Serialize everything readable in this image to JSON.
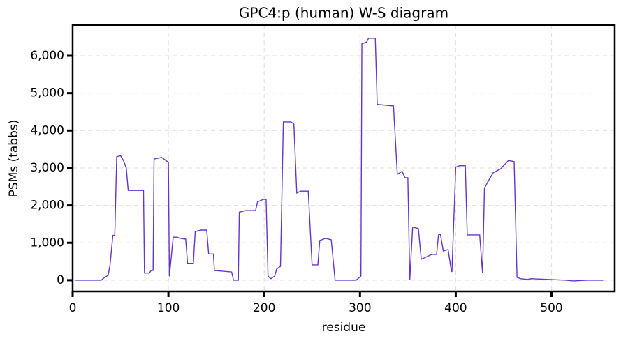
{
  "chart_data": {
    "type": "line",
    "title": "GPC4:p (human) W-S diagram",
    "x_label": "residue",
    "y_label": "PSMs (tabbs)",
    "x": [
      3,
      30,
      32,
      37,
      39,
      42,
      44,
      46,
      50,
      53,
      56,
      58,
      74,
      75,
      80,
      82,
      84,
      85,
      93,
      100,
      101,
      105,
      109,
      112,
      118,
      120,
      126,
      128,
      134,
      140,
      142,
      147,
      148,
      166,
      168,
      173,
      174,
      181,
      191,
      193,
      199,
      202,
      204,
      207,
      211,
      213,
      217,
      220,
      228,
      231,
      234,
      238,
      246,
      250,
      256,
      258,
      264,
      270,
      274,
      296,
      301,
      302,
      307,
      309,
      316,
      318,
      335,
      339,
      344,
      347,
      350,
      352,
      355,
      361,
      364,
      370,
      375,
      380,
      382,
      384,
      387,
      392,
      395,
      396,
      400,
      404,
      410,
      412,
      425,
      428,
      430,
      434,
      439,
      447,
      455,
      461,
      464,
      468,
      475,
      479,
      515,
      523,
      537,
      554
    ],
    "series": [
      {
        "name": "GPC4:p",
        "color": "#6633cc",
        "values": [
          0,
          0,
          50,
          130,
          400,
          1200,
          1200,
          3300,
          3330,
          3200,
          3000,
          2400,
          2400,
          190,
          190,
          260,
          260,
          3240,
          3280,
          3150,
          100,
          1150,
          1150,
          1120,
          1100,
          450,
          450,
          1300,
          1340,
          1340,
          700,
          700,
          260,
          220,
          0,
          0,
          1820,
          1860,
          1860,
          2090,
          2160,
          2160,
          110,
          40,
          110,
          300,
          370,
          4230,
          4230,
          4170,
          2330,
          2380,
          2380,
          410,
          410,
          1060,
          1120,
          1080,
          0,
          0,
          110,
          6320,
          6370,
          6470,
          6470,
          4700,
          4660,
          2830,
          2910,
          2740,
          2740,
          0,
          1420,
          1380,
          560,
          630,
          690,
          690,
          1210,
          1230,
          780,
          820,
          320,
          220,
          3020,
          3060,
          3060,
          1210,
          1210,
          190,
          2460,
          2650,
          2870,
          2980,
          3200,
          3170,
          75,
          40,
          20,
          40,
          0,
          -20,
          0,
          0
        ]
      }
    ],
    "xlim": [
      0,
      566
    ],
    "ylim": [
      -300,
      6820
    ],
    "xticks": [
      0,
      100,
      200,
      300,
      400,
      500
    ],
    "yticks": [
      0,
      {
        "value": 1000,
        "label": "1,000"
      },
      {
        "value": 2000,
        "label": "2,000"
      },
      {
        "value": 3000,
        "label": "3,000"
      },
      {
        "value": 4000,
        "label": "4,000"
      },
      {
        "value": 5000,
        "label": "5,000"
      },
      {
        "value": 6000,
        "label": "6,000"
      }
    ],
    "grid": true
  }
}
